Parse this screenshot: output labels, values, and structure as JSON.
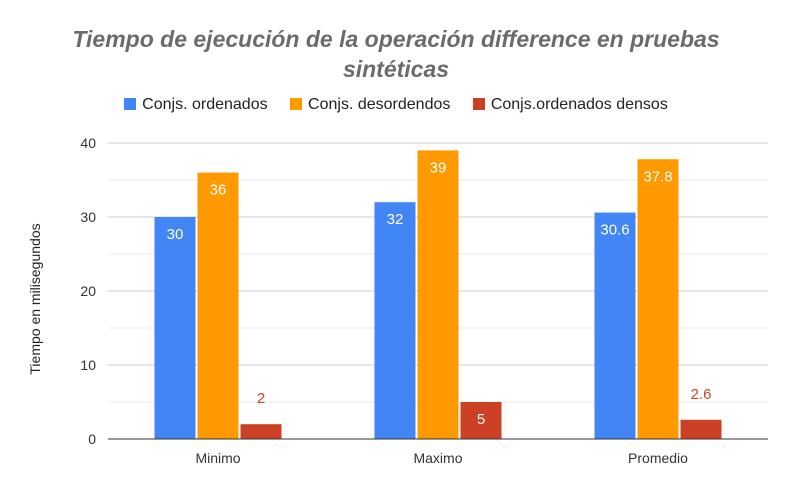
{
  "chart_data": {
    "type": "bar",
    "title_lines": [
      "Tiempo de ejecución de la operación difference en pruebas",
      "sintéticas"
    ],
    "ylabel": "Tiempo en milisegundos",
    "xlabel": "",
    "categories": [
      "Minimo",
      "Maximo",
      "Promedio"
    ],
    "ylim": [
      0,
      40
    ],
    "yticks": [
      0,
      10,
      20,
      30,
      40
    ],
    "grid": true,
    "legend_position": "top",
    "series": [
      {
        "name": "Conjs. ordenados",
        "color": "#4285f4",
        "values": [
          30,
          32,
          30.6
        ],
        "labels": [
          "30",
          "32",
          "30.6"
        ]
      },
      {
        "name": "Conjs. desordendos",
        "color": "#ff9900",
        "values": [
          36,
          39,
          37.8
        ],
        "labels": [
          "36",
          "39",
          "37.8"
        ]
      },
      {
        "name": "Conjs.ordenados densos",
        "color": "#cc4125",
        "values": [
          2,
          5,
          2.6
        ],
        "labels": [
          "2",
          "5",
          "2.6"
        ]
      }
    ]
  }
}
